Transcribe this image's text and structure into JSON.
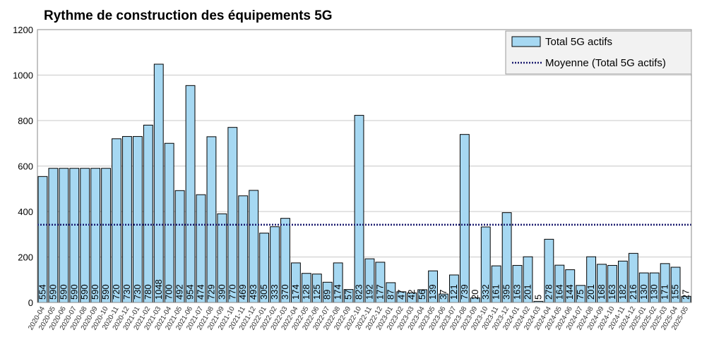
{
  "chart_data": {
    "type": "bar",
    "title": "Rythme de construction des équipements 5G",
    "xlabel": "",
    "ylabel": "",
    "ylim": [
      0,
      1200
    ],
    "yticks": [
      0,
      200,
      400,
      600,
      800,
      1000,
      1200
    ],
    "grid": true,
    "legend_position": "top-right",
    "categories": [
      "2020-04",
      "2020-05",
      "2020-06",
      "2020-07",
      "2020-08",
      "2020-09",
      "2020-10",
      "2020-11",
      "2020-12",
      "2021-01",
      "2021-02",
      "2021-03",
      "2021-04",
      "2021-05",
      "2021-06",
      "2021-07",
      "2021-08",
      "2021-09",
      "2021-10",
      "2021-11",
      "2021-12",
      "2022-01",
      "2022-02",
      "2022-03",
      "2022-04",
      "2022-05",
      "2022-06",
      "2022-07",
      "2022-08",
      "2022-09",
      "2022-10",
      "2022-11",
      "2022-12",
      "2023-01",
      "2023-02",
      "2023-03",
      "2023-04",
      "2023-05",
      "2023-06",
      "2023-07",
      "2023-08",
      "2023-09",
      "2023-10",
      "2023-11",
      "2023-12",
      "2024-01",
      "2024-02",
      "2024-03",
      "2024-04",
      "2024-05",
      "2024-06",
      "2024-07",
      "2024-08",
      "2024-09",
      "2024-10",
      "2024-11",
      "2024-12",
      "2025-01",
      "2025-02",
      "2025-03",
      "2025-04",
      "2025-05"
    ],
    "series": [
      {
        "name": "Total 5G actifs",
        "color": "#a6d8f2",
        "values": [
          554,
          590,
          590,
          590,
          590,
          590,
          590,
          720,
          730,
          730,
          780,
          1048,
          700,
          492,
          954,
          474,
          729,
          390,
          770,
          469,
          493,
          305,
          333,
          370,
          174,
          128,
          125,
          89,
          174,
          57,
          823,
          192,
          177,
          87,
          47,
          42,
          56,
          139,
          37,
          121,
          739,
          20,
          332,
          161,
          395,
          163,
          201,
          5,
          278,
          164,
          144,
          75,
          201,
          168,
          163,
          182,
          216,
          130,
          130,
          171,
          155,
          27
        ]
      }
    ],
    "average": {
      "name": "Moyenne (Total 5G actifs)",
      "value": 342,
      "color": "#1a1a6e"
    }
  }
}
